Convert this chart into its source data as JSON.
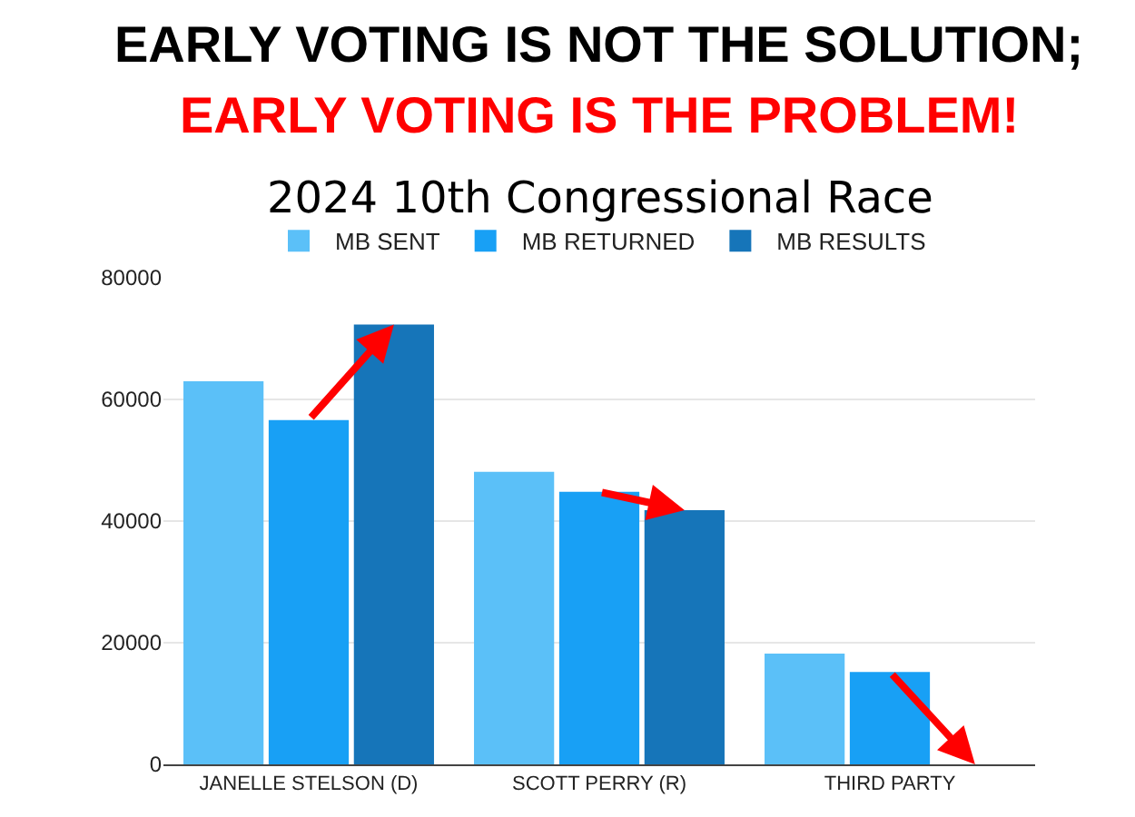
{
  "chart_data": {
    "type": "bar",
    "title": "EARLY VOTING IS NOT THE SOLUTION;\nEARLY VOTING IS THE PROBLEM!",
    "subtitle": "2024 10th Congressional Race",
    "categories": [
      "JANELLE STELSON (D)",
      "SCOTT PERRY (R)",
      "THIRD PARTY"
    ],
    "series": [
      {
        "name": "MB SENT",
        "color": "#5bc0f8",
        "values": [
          63000,
          48100,
          18200
        ]
      },
      {
        "name": "MB RETURNED",
        "color": "#18a0f5",
        "values": [
          56600,
          44800,
          15200
        ]
      },
      {
        "name": "MB RESULTS",
        "color": "#1675b9",
        "values": [
          72300,
          41800,
          null
        ]
      }
    ],
    "ylim": [
      0,
      80000
    ],
    "yticks": [
      0,
      20000,
      40000,
      60000,
      80000
    ],
    "grid": "y",
    "legend": "top"
  }
}
